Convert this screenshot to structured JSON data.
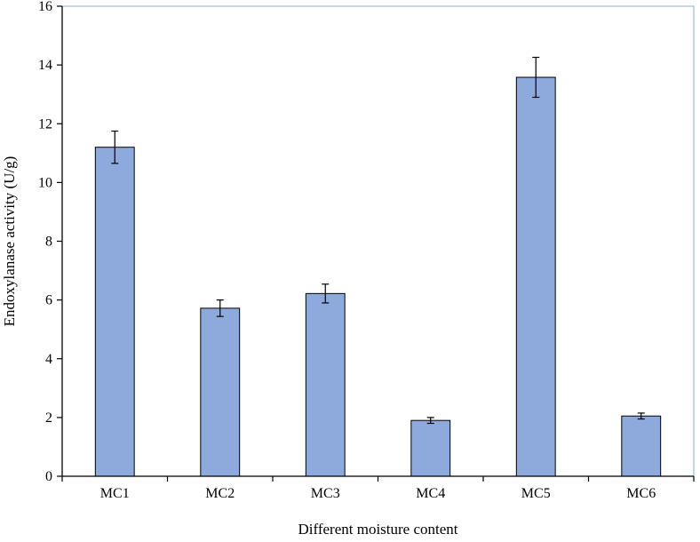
{
  "chart_data": {
    "type": "bar",
    "title": "",
    "xlabel": "Different moisture content",
    "ylabel": "Endoxylanase activity (U/g)",
    "categories": [
      "MC1",
      "MC2",
      "MC3",
      "MC4",
      "MC5",
      "MC6"
    ],
    "values": [
      11.2,
      5.72,
      6.22,
      1.9,
      13.58,
      2.05
    ],
    "errors": [
      0.55,
      0.28,
      0.32,
      0.1,
      0.68,
      0.1
    ],
    "ylim": [
      0,
      16
    ],
    "yticks": [
      "0",
      "2",
      "4",
      "6",
      "8",
      "10",
      "12",
      "14",
      "16"
    ],
    "grid": false,
    "legend": "none",
    "colors": {
      "bar_fill": "#8eaadc",
      "bar_stroke": "#000000",
      "frame": "#8eaadc"
    }
  }
}
